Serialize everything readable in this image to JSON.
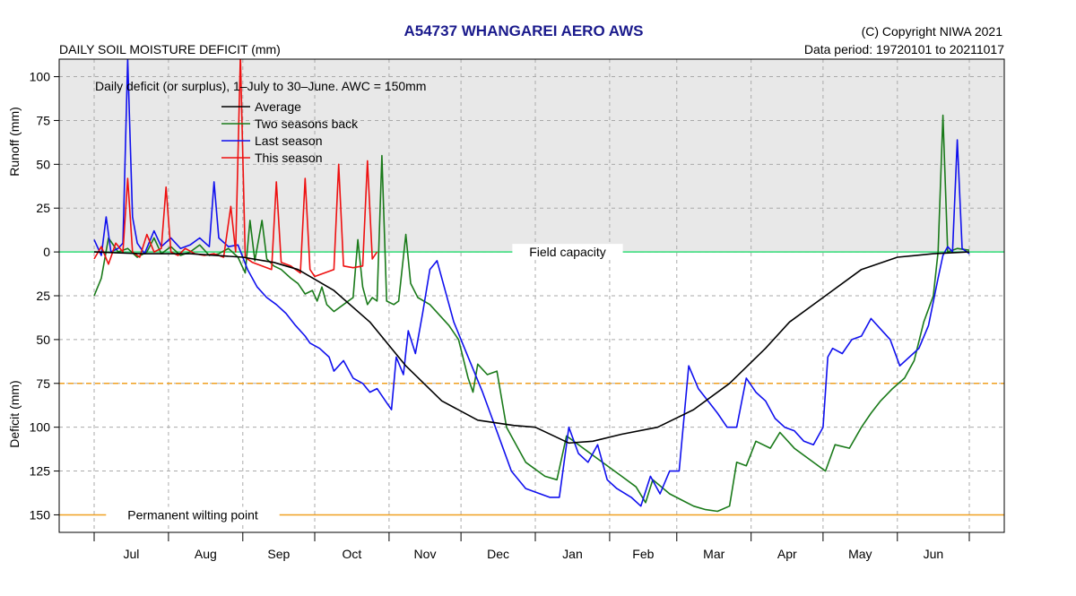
{
  "chart_data": {
    "type": "line",
    "title": "A54737  WHANGAREI AERO AWS",
    "subtitle_left": "DAILY SOIL MOISTURE DEFICIT (mm)",
    "copyright": "(C) Copyright NIWA  2021",
    "data_period": "Data period:  19720101  to  20211017",
    "annotation": "Daily deficit (or surplus), 1–July to 30–June.  AWC = 150mm",
    "ylabel_top": "Runoff (mm)",
    "ylabel_bottom": "Deficit (mm)",
    "x_domain": [
      0,
      365
    ],
    "y_domain": [
      -110,
      160
    ],
    "grid": true,
    "legend_position": "top-left",
    "months": [
      "Jul",
      "Aug",
      "Sep",
      "Oct",
      "Nov",
      "Dec",
      "Jan",
      "Feb",
      "Mar",
      "Apr",
      "May",
      "Jun"
    ],
    "month_boundaries": [
      0,
      31,
      62,
      92,
      123,
      153,
      184,
      215,
      243,
      274,
      304,
      335,
      365
    ],
    "y_ticks": [
      {
        "value": -100,
        "label": "100"
      },
      {
        "value": -75,
        "label": "75"
      },
      {
        "value": -50,
        "label": "50"
      },
      {
        "value": -25,
        "label": "25"
      },
      {
        "value": 0,
        "label": "0"
      },
      {
        "value": 25,
        "label": "25"
      },
      {
        "value": 50,
        "label": "50"
      },
      {
        "value": 75,
        "label": "75"
      },
      {
        "value": 100,
        "label": "100"
      },
      {
        "value": 125,
        "label": "125"
      },
      {
        "value": 150,
        "label": "150"
      }
    ],
    "reference_lines": [
      {
        "name": "Field capacity",
        "value": 0,
        "color": "#33dd77",
        "dashed": false
      },
      {
        "name": "",
        "value": 75,
        "color": "#f0a020",
        "dashed": true
      },
      {
        "name": "Permanent wilting point",
        "value": 150,
        "color": "#f0a020",
        "dashed": false
      }
    ],
    "series": [
      {
        "name": "Average",
        "color": "#000000",
        "points": [
          [
            0,
            0
          ],
          [
            20,
            1
          ],
          [
            40,
            1
          ],
          [
            62,
            3
          ],
          [
            75,
            6
          ],
          [
            85,
            10
          ],
          [
            100,
            22
          ],
          [
            115,
            40
          ],
          [
            130,
            65
          ],
          [
            145,
            85
          ],
          [
            160,
            96
          ],
          [
            175,
            99
          ],
          [
            184,
            100
          ],
          [
            198,
            109
          ],
          [
            208,
            108
          ],
          [
            220,
            104
          ],
          [
            235,
            100
          ],
          [
            250,
            90
          ],
          [
            265,
            75
          ],
          [
            280,
            55
          ],
          [
            290,
            40
          ],
          [
            305,
            25
          ],
          [
            320,
            10
          ],
          [
            335,
            3
          ],
          [
            350,
            1
          ],
          [
            365,
            0
          ]
        ]
      },
      {
        "name": "Two seasons back",
        "color": "#1a7a1a",
        "points": [
          [
            0,
            25
          ],
          [
            3,
            15
          ],
          [
            6,
            -8
          ],
          [
            10,
            0
          ],
          [
            14,
            -2
          ],
          [
            18,
            3
          ],
          [
            22,
            0
          ],
          [
            25,
            -8
          ],
          [
            28,
            1
          ],
          [
            32,
            -3
          ],
          [
            36,
            2
          ],
          [
            40,
            0
          ],
          [
            44,
            -4
          ],
          [
            48,
            2
          ],
          [
            52,
            1
          ],
          [
            56,
            -2
          ],
          [
            60,
            3
          ],
          [
            63,
            12
          ],
          [
            65,
            -18
          ],
          [
            67,
            5
          ],
          [
            70,
            -18
          ],
          [
            72,
            4
          ],
          [
            75,
            8
          ],
          [
            78,
            10
          ],
          [
            82,
            15
          ],
          [
            85,
            18
          ],
          [
            88,
            24
          ],
          [
            91,
            22
          ],
          [
            93,
            28
          ],
          [
            95,
            20
          ],
          [
            97,
            30
          ],
          [
            100,
            34
          ],
          [
            104,
            30
          ],
          [
            108,
            26
          ],
          [
            110,
            -7
          ],
          [
            112,
            20
          ],
          [
            114,
            30
          ],
          [
            116,
            26
          ],
          [
            118,
            28
          ],
          [
            120,
            -55
          ],
          [
            122,
            28
          ],
          [
            125,
            30
          ],
          [
            127,
            28
          ],
          [
            130,
            -10
          ],
          [
            132,
            18
          ],
          [
            135,
            26
          ],
          [
            140,
            30
          ],
          [
            148,
            42
          ],
          [
            152,
            50
          ],
          [
            156,
            72
          ],
          [
            158,
            80
          ],
          [
            160,
            64
          ],
          [
            164,
            70
          ],
          [
            168,
            68
          ],
          [
            172,
            100
          ],
          [
            180,
            120
          ],
          [
            188,
            128
          ],
          [
            193,
            130
          ],
          [
            197,
            105
          ],
          [
            210,
            118
          ],
          [
            220,
            128
          ],
          [
            226,
            134
          ],
          [
            230,
            143
          ],
          [
            233,
            130
          ],
          [
            240,
            138
          ],
          [
            250,
            145
          ],
          [
            255,
            147
          ],
          [
            260,
            148
          ],
          [
            265,
            145
          ],
          [
            268,
            120
          ],
          [
            272,
            122
          ],
          [
            276,
            108
          ],
          [
            282,
            112
          ],
          [
            286,
            103
          ],
          [
            292,
            112
          ],
          [
            298,
            118
          ],
          [
            305,
            125
          ],
          [
            309,
            110
          ],
          [
            315,
            112
          ],
          [
            320,
            100
          ],
          [
            324,
            92
          ],
          [
            328,
            85
          ],
          [
            333,
            78
          ],
          [
            338,
            72
          ],
          [
            342,
            62
          ],
          [
            346,
            40
          ],
          [
            350,
            25
          ],
          [
            352,
            0
          ],
          [
            354,
            -78
          ],
          [
            356,
            0
          ],
          [
            360,
            -2
          ],
          [
            365,
            -1
          ]
        ]
      },
      {
        "name": "Last season",
        "color": "#1010ee",
        "points": [
          [
            0,
            -7
          ],
          [
            3,
            2
          ],
          [
            5,
            -20
          ],
          [
            7,
            0
          ],
          [
            10,
            -2
          ],
          [
            12,
            -5
          ],
          [
            14,
            -110
          ],
          [
            16,
            -20
          ],
          [
            18,
            -5
          ],
          [
            21,
            1
          ],
          [
            25,
            -12
          ],
          [
            28,
            -3
          ],
          [
            32,
            -8
          ],
          [
            36,
            -2
          ],
          [
            40,
            -4
          ],
          [
            44,
            -8
          ],
          [
            48,
            -3
          ],
          [
            50,
            -40
          ],
          [
            52,
            -8
          ],
          [
            56,
            -3
          ],
          [
            60,
            -4
          ],
          [
            64,
            10
          ],
          [
            68,
            20
          ],
          [
            72,
            26
          ],
          [
            76,
            30
          ],
          [
            80,
            35
          ],
          [
            84,
            42
          ],
          [
            88,
            48
          ],
          [
            90,
            52
          ],
          [
            94,
            55
          ],
          [
            98,
            60
          ],
          [
            100,
            68
          ],
          [
            104,
            62
          ],
          [
            108,
            72
          ],
          [
            112,
            75
          ],
          [
            115,
            80
          ],
          [
            118,
            78
          ],
          [
            122,
            86
          ],
          [
            124,
            90
          ],
          [
            126,
            60
          ],
          [
            129,
            70
          ],
          [
            131,
            45
          ],
          [
            134,
            58
          ],
          [
            137,
            35
          ],
          [
            140,
            10
          ],
          [
            143,
            5
          ],
          [
            146,
            20
          ],
          [
            150,
            40
          ],
          [
            156,
            60
          ],
          [
            162,
            80
          ],
          [
            166,
            95
          ],
          [
            170,
            110
          ],
          [
            174,
            125
          ],
          [
            180,
            135
          ],
          [
            186,
            138
          ],
          [
            190,
            140
          ],
          [
            194,
            140
          ],
          [
            198,
            100
          ],
          [
            202,
            115
          ],
          [
            206,
            120
          ],
          [
            210,
            110
          ],
          [
            214,
            130
          ],
          [
            218,
            135
          ],
          [
            224,
            140
          ],
          [
            228,
            145
          ],
          [
            232,
            128
          ],
          [
            236,
            138
          ],
          [
            240,
            125
          ],
          [
            244,
            125
          ],
          [
            248,
            65
          ],
          [
            252,
            78
          ],
          [
            256,
            85
          ],
          [
            260,
            92
          ],
          [
            264,
            100
          ],
          [
            268,
            100
          ],
          [
            272,
            72
          ],
          [
            276,
            80
          ],
          [
            280,
            85
          ],
          [
            284,
            95
          ],
          [
            288,
            100
          ],
          [
            292,
            102
          ],
          [
            296,
            108
          ],
          [
            300,
            110
          ],
          [
            304,
            100
          ],
          [
            306,
            60
          ],
          [
            308,
            55
          ],
          [
            312,
            58
          ],
          [
            316,
            50
          ],
          [
            320,
            48
          ],
          [
            324,
            38
          ],
          [
            328,
            44
          ],
          [
            332,
            50
          ],
          [
            336,
            65
          ],
          [
            340,
            60
          ],
          [
            344,
            55
          ],
          [
            348,
            42
          ],
          [
            352,
            15
          ],
          [
            354,
            2
          ],
          [
            356,
            -3
          ],
          [
            358,
            0
          ],
          [
            360,
            -64
          ],
          [
            362,
            -2
          ],
          [
            364,
            0
          ],
          [
            365,
            1
          ]
        ]
      },
      {
        "name": "This season",
        "color": "#ee1010",
        "points": [
          [
            0,
            4
          ],
          [
            3,
            -3
          ],
          [
            6,
            7
          ],
          [
            9,
            -5
          ],
          [
            12,
            0
          ],
          [
            14,
            -42
          ],
          [
            16,
            0
          ],
          [
            19,
            3
          ],
          [
            22,
            -10
          ],
          [
            25,
            0
          ],
          [
            28,
            -2
          ],
          [
            30,
            -37
          ],
          [
            32,
            0
          ],
          [
            35,
            2
          ],
          [
            38,
            -2
          ],
          [
            42,
            1
          ],
          [
            46,
            2
          ],
          [
            50,
            1
          ],
          [
            54,
            3
          ],
          [
            57,
            -26
          ],
          [
            59,
            0
          ],
          [
            61,
            -112
          ],
          [
            63,
            3
          ],
          [
            66,
            6
          ],
          [
            70,
            8
          ],
          [
            74,
            10
          ],
          [
            76,
            -40
          ],
          [
            78,
            6
          ],
          [
            82,
            8
          ],
          [
            86,
            12
          ],
          [
            88,
            -42
          ],
          [
            90,
            10
          ],
          [
            92,
            14
          ],
          [
            96,
            12
          ],
          [
            100,
            10
          ],
          [
            102,
            -50
          ],
          [
            104,
            8
          ],
          [
            108,
            9
          ],
          [
            112,
            8
          ],
          [
            114,
            -52
          ],
          [
            116,
            4
          ],
          [
            118,
            0
          ]
        ]
      }
    ]
  }
}
